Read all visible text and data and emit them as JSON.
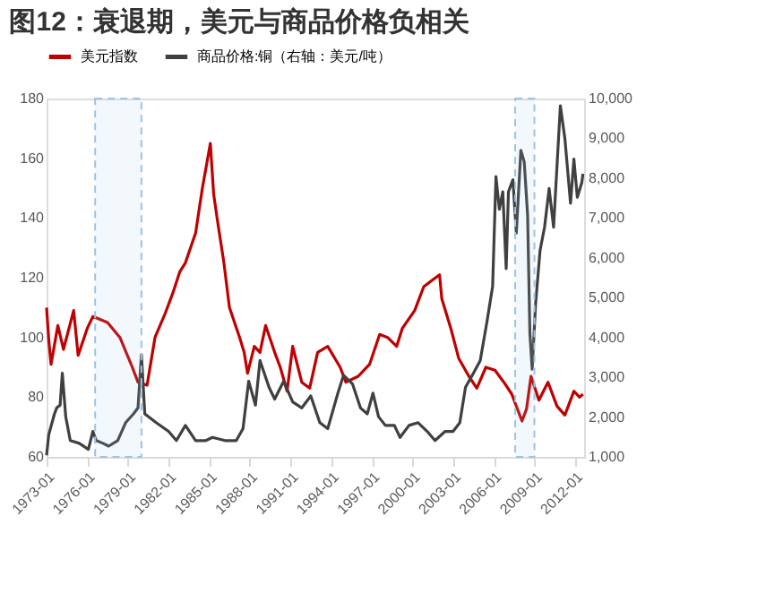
{
  "chart_data": {
    "type": "line",
    "title": "图12：衰退期，美元与商品价格负相关",
    "x": [
      "1973-01",
      "1973-03",
      "1973-05",
      "1973-11",
      "1974-04",
      "1975-01",
      "1975-05",
      "1976-01",
      "1976-06",
      "1977-07",
      "1978-06",
      "1979-05",
      "1979-10",
      "1980-06",
      "1981-01",
      "1981-10",
      "1982-05",
      "1982-11",
      "1983-04",
      "1984-01",
      "1984-07",
      "1985-02",
      "1985-05",
      "1985-08",
      "1986-02",
      "1986-07",
      "1987-04",
      "1987-08",
      "1987-11",
      "1988-05",
      "1988-10",
      "1989-03",
      "1989-11",
      "1990-04",
      "1990-10",
      "1991-03",
      "1991-11",
      "1992-06",
      "1993-01",
      "1993-10",
      "1994-09",
      "1995-02",
      "1996-01",
      "1996-11",
      "1997-08",
      "1998-03",
      "1998-11",
      "1999-04",
      "2000-03",
      "2000-11",
      "2001-06",
      "2002-01",
      "2002-03",
      "2002-11",
      "2003-06",
      "2004-03",
      "2004-10",
      "2005-06",
      "2006-02",
      "2006-10",
      "2007-05",
      "2008-02",
      "2008-06",
      "2008-10",
      "2009-05",
      "2010-01",
      "2010-09",
      "2011-04",
      "2011-12",
      "2012-05",
      "2012-08"
    ],
    "series": [
      {
        "name": "美元指数",
        "color": "#c00000",
        "values": [
          110,
          99,
          91,
          104,
          96,
          109,
          94,
          103,
          107,
          105,
          100,
          90,
          85,
          84,
          100,
          108,
          115,
          122,
          125,
          135,
          150,
          165,
          148,
          140,
          125,
          110,
          100,
          95,
          88,
          97,
          95,
          104,
          95,
          90,
          82,
          97,
          85,
          83,
          95,
          97,
          90,
          85,
          87,
          91,
          101,
          100,
          97,
          103,
          109,
          117,
          119,
          121,
          113,
          103,
          93,
          87,
          83,
          90,
          89,
          85,
          81,
          72,
          76,
          87,
          79,
          85,
          77,
          74,
          82,
          80,
          81
        ]
      },
      {
        "name": "商品价格:铜（右轴：美元/吨）",
        "color": "#404040",
        "axis": "y2",
        "x": [
          "1973-01",
          "1973-03",
          "1973-08",
          "1973-10",
          "1974-01",
          "1974-03",
          "1974-06",
          "1974-10",
          "1975-06",
          "1976-02",
          "1976-06",
          "1976-09",
          "1977-03",
          "1977-08",
          "1978-04",
          "1978-11",
          "1979-06",
          "1979-10",
          "1980-01",
          "1980-04",
          "1981-02",
          "1982-01",
          "1982-08",
          "1983-04",
          "1984-01",
          "1984-10",
          "1985-04",
          "1986-03",
          "1987-01",
          "1987-07",
          "1987-12",
          "1988-06",
          "1988-10",
          "1989-06",
          "1989-11",
          "1990-07",
          "1991-03",
          "1991-11",
          "1992-07",
          "1993-03",
          "1993-10",
          "1994-07",
          "1994-12",
          "1995-08",
          "1996-03",
          "1996-09",
          "1997-02",
          "1997-07",
          "1998-01",
          "1998-09",
          "1999-02",
          "1999-10",
          "2000-06",
          "2001-02",
          "2001-09",
          "2002-06",
          "2003-01",
          "2003-07",
          "2003-12",
          "2004-06",
          "2005-01",
          "2005-07",
          "2005-12",
          "2006-03",
          "2006-06",
          "2006-09",
          "2006-12",
          "2007-02",
          "2007-06",
          "2007-09",
          "2008-01",
          "2008-04",
          "2008-07",
          "2008-09",
          "2008-11",
          "2009-02",
          "2009-06",
          "2009-10",
          "2010-02",
          "2010-06",
          "2010-12",
          "2011-04",
          "2011-09",
          "2011-12",
          "2012-03",
          "2012-07",
          "2012-08"
        ],
        "values": [
          1040,
          1560,
          2080,
          2230,
          2300,
          3100,
          2010,
          1410,
          1340,
          1190,
          1640,
          1410,
          1340,
          1270,
          1410,
          1860,
          2080,
          2230,
          3570,
          2080,
          1860,
          1640,
          1410,
          1790,
          1410,
          1410,
          1490,
          1410,
          1410,
          1710,
          2900,
          2300,
          3420,
          2750,
          2450,
          2900,
          2380,
          2230,
          2530,
          1860,
          1710,
          2600,
          3050,
          2830,
          2230,
          2080,
          2600,
          2010,
          1790,
          1790,
          1490,
          1790,
          1860,
          1640,
          1410,
          1640,
          1640,
          1860,
          2750,
          3050,
          3420,
          4390,
          5280,
          8040,
          7220,
          7660,
          5730,
          7660,
          7960,
          6620,
          8700,
          8410,
          7070,
          4090,
          3200,
          4840,
          6180,
          6770,
          7740,
          6770,
          9820,
          9000,
          7370,
          8480,
          7520,
          7890,
          8110
        ]
      }
    ],
    "xlim": [
      "1973-01",
      "2012-09"
    ],
    "xticks": [
      "1973-01",
      "1976-01",
      "1979-01",
      "1982-01",
      "1985-01",
      "1988-01",
      "1991-01",
      "1994-01",
      "1997-01",
      "2000-01",
      "2003-01",
      "2006-01",
      "2009-01",
      "2012-01"
    ],
    "ylim": [
      60,
      180
    ],
    "yticks": [
      60,
      80,
      100,
      120,
      140,
      160,
      180
    ],
    "y2lim": [
      1000,
      10000
    ],
    "y2ticks": [
      {
        "value": 1000,
        "label": "1,000"
      },
      {
        "value": 2000,
        "label": "2,000"
      },
      {
        "value": 3000,
        "label": "3,000"
      },
      {
        "value": 4000,
        "label": "4,000"
      },
      {
        "value": 5000,
        "label": "5,000"
      },
      {
        "value": 6000,
        "label": "6,000"
      },
      {
        "value": 7000,
        "label": "7,000"
      },
      {
        "value": 8000,
        "label": "8,000"
      },
      {
        "value": 9000,
        "label": "9,000"
      },
      {
        "value": 10000,
        "label": "10,000"
      }
    ],
    "bands": [
      {
        "axis": "x",
        "from": "1976-08",
        "to": "1980-01",
        "color": "#9dc3e6"
      },
      {
        "axis": "x",
        "from": "2007-08",
        "to": "2009-01",
        "color": "#9dc3e6"
      }
    ],
    "legend": "top",
    "grid": false,
    "marker": "none",
    "line_style": "solid"
  }
}
